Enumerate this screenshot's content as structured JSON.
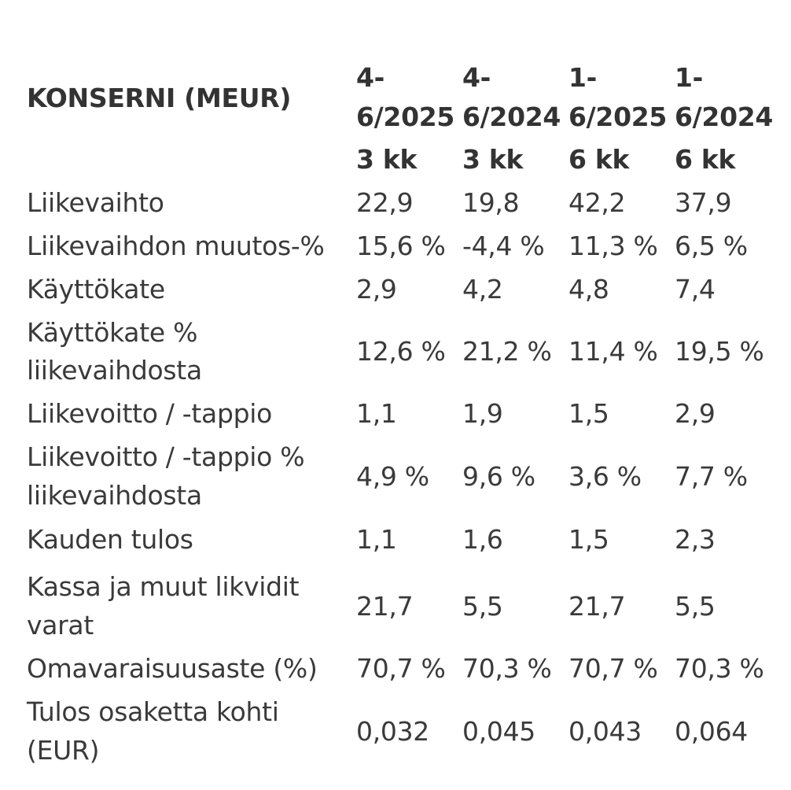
{
  "header": {
    "title": "KONSERNI (MEUR)",
    "columns": [
      {
        "line1": "4-",
        "line2": "6/2025",
        "line3": "3 kk"
      },
      {
        "line1": "4-",
        "line2": "6/2024",
        "line3": "3 kk"
      },
      {
        "line1": "1-",
        "line2": "6/2025",
        "line3": "6 kk"
      },
      {
        "line1": "1-",
        "line2": "6/2024",
        "line3": "6 kk"
      }
    ]
  },
  "rows": [
    {
      "label_lines": [
        "Liikevaihto"
      ],
      "values": [
        "22,9",
        "19,8",
        "42,2",
        "37,9"
      ]
    },
    {
      "label_lines": [
        "Liikevaihdon muutos-%"
      ],
      "values": [
        "15,6 %",
        "-4,4 %",
        "11,3 %",
        "6,5 %"
      ]
    },
    {
      "label_lines": [
        "Käyttökate"
      ],
      "values": [
        "2,9",
        "4,2",
        "4,8",
        "7,4"
      ]
    },
    {
      "label_lines": [
        "Käyttökate %",
        "liikevaihdosta"
      ],
      "values": [
        "12,6 %",
        "21,2 %",
        "11,4 %",
        "19,5 %"
      ]
    },
    {
      "label_lines": [
        "Liikevoitto / -tappio"
      ],
      "values": [
        "1,1",
        "1,9",
        "1,5",
        "2,9"
      ]
    },
    {
      "label_lines": [
        "Liikevoitto / -tappio %",
        "liikevaihdosta"
      ],
      "values": [
        "4,9 %",
        "9,6 %",
        "3,6 %",
        "7,7 %"
      ]
    },
    {
      "label_lines": [
        "Kauden tulos"
      ],
      "values": [
        "1,1",
        "1,6",
        "1,5",
        "2,3"
      ]
    },
    {
      "label_lines": [
        "Kassa ja muut likvidit",
        "varat"
      ],
      "values": [
        "21,7",
        "5,5",
        "21,7",
        "5,5"
      ]
    },
    {
      "label_lines": [
        "Omavaraisuusaste (%)"
      ],
      "values": [
        "70,7 %",
        "70,3 %",
        "70,7 %",
        "70,3 %"
      ]
    },
    {
      "label_lines": [
        "Tulos osaketta kohti",
        "(EUR)"
      ],
      "values": [
        "0,032",
        "0,045",
        "0,043",
        "0,064"
      ]
    }
  ]
}
